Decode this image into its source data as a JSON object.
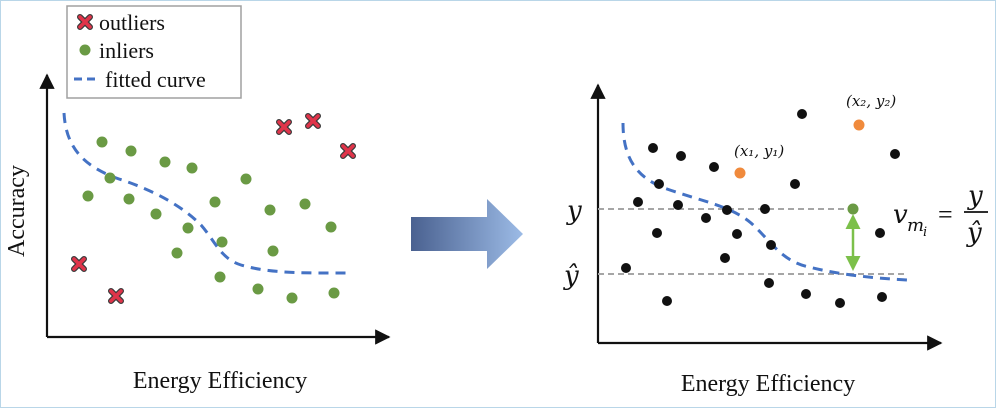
{
  "left_plot": {
    "xlabel": "Energy Efficiency",
    "ylabel": "Accuracy",
    "legend": [
      {
        "label": "outliers",
        "marker": "x-icon",
        "color": "#e0344a"
      },
      {
        "label": "inliers",
        "marker": "dot-icon",
        "color": "#6a9a44"
      },
      {
        "label": "fitted curve",
        "marker": "dashed-line",
        "color": "#4472c4"
      }
    ]
  },
  "right_plot": {
    "xlabel": "Energy Efficiency",
    "y_label": "y",
    "yhat_label": "ŷ",
    "point1_label": "(x₁, y₁)",
    "point2_label": "(x₂, y₂)",
    "formula": {
      "lhs": "v",
      "sub": "m",
      "subsub": "i",
      "eq": "=",
      "num": "y",
      "den": "ŷ"
    }
  },
  "colors": {
    "inlier": "#6a9a44",
    "outlier": "#e0344a",
    "curve": "#4472c4",
    "black_point": "#111111",
    "orange_point": "#f08a3c",
    "arrow_green": "#7cc04a",
    "guide_gray": "#a6a6a6"
  }
}
